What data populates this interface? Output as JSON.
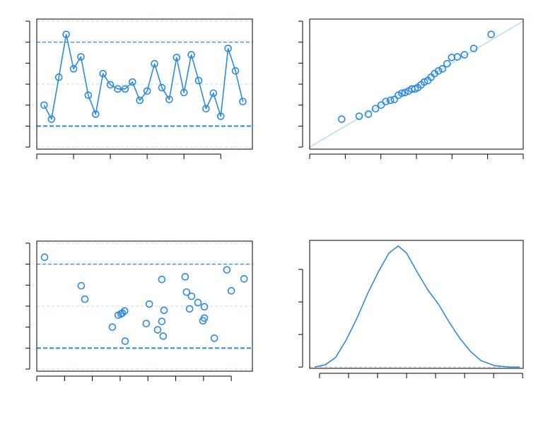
{
  "chart_data": [
    {
      "type": "line",
      "markers": true,
      "color": "#2a8ae2",
      "x": [
        1,
        2,
        3,
        4,
        5,
        6,
        7,
        8,
        9,
        10,
        11,
        12,
        13,
        14,
        15,
        16,
        17,
        18,
        19,
        20,
        21,
        22,
        23,
        24,
        25,
        26,
        27,
        28
      ],
      "values": [
        -1.0,
        -1.67,
        0.33,
        2.37,
        0.73,
        1.3,
        -0.53,
        -1.43,
        0.5,
        -0.03,
        -0.23,
        -0.23,
        0.1,
        -0.77,
        -0.33,
        0.97,
        -0.17,
        -0.73,
        1.27,
        -0.4,
        1.4,
        0.17,
        -1.17,
        -0.43,
        -1.53,
        1.7,
        0.63,
        -0.83
      ],
      "xlim": [
        0,
        29.3
      ],
      "xticks": [
        0,
        5,
        10,
        15,
        20,
        25
      ],
      "ylim": [
        -3.1,
        3.1
      ],
      "yticks": [
        -3,
        -2,
        -1,
        0,
        1,
        2,
        3
      ],
      "hlines": [
        {
          "value": 3,
          "style": "light",
          "color": "#b8def2"
        },
        {
          "value": 2,
          "style": "dashed",
          "color": "#2a8ae2"
        },
        {
          "value": 0,
          "style": "light",
          "color": "#b8def2"
        },
        {
          "value": -2,
          "style": "bold",
          "color": "#2a8ae2"
        },
        {
          "value": -3,
          "style": "light",
          "color": "#b8def2"
        }
      ]
    },
    {
      "type": "scatter",
      "color": "#2a8ae2",
      "x": [
        -2.1,
        -1.61,
        -1.35,
        -1.15,
        -0.99,
        -0.86,
        -0.73,
        -0.62,
        -0.51,
        -0.41,
        -0.32,
        -0.22,
        -0.13,
        -0.04,
        0.04,
        0.13,
        0.22,
        0.32,
        0.41,
        0.51,
        0.62,
        0.73,
        0.86,
        0.99,
        1.15,
        1.35,
        1.61,
        2.1
      ],
      "values": [
        -1.67,
        -1.53,
        -1.43,
        -1.17,
        -1.0,
        -0.83,
        -0.77,
        -0.73,
        -0.53,
        -0.43,
        -0.4,
        -0.33,
        -0.23,
        -0.23,
        -0.17,
        -0.03,
        0.1,
        0.17,
        0.33,
        0.5,
        0.63,
        0.73,
        0.97,
        1.27,
        1.3,
        1.4,
        1.7,
        2.37
      ],
      "xlim": [
        -3,
        3
      ],
      "xticks": [
        -3,
        -2,
        -1,
        0,
        1,
        2,
        3
      ],
      "ylim": [
        -3.1,
        3.1
      ],
      "yticks": [
        -3,
        -2,
        -1,
        0,
        1,
        2,
        3
      ],
      "reference_line": {
        "slope": 1,
        "intercept": 0,
        "color": "#a9d9ee"
      }
    },
    {
      "type": "scatter",
      "color": "#2a8ae2",
      "x": [
        0.28,
        1.6,
        1.73,
        2.72,
        2.93,
        3.03,
        3.08,
        3.16,
        3.18,
        3.94,
        4.05,
        4.35,
        4.5,
        4.5,
        4.55,
        4.58,
        5.34,
        5.39,
        5.5,
        5.57,
        5.8,
        5.98,
        6.03,
        6.03,
        6.39,
        6.84,
        7.0,
        7.46
      ],
      "values": [
        2.33,
        0.97,
        0.33,
        -1.0,
        -0.43,
        -0.37,
        -0.33,
        -0.23,
        -1.67,
        -0.83,
        0.1,
        -1.13,
        -0.73,
        1.27,
        -1.43,
        -0.2,
        1.4,
        0.67,
        -0.13,
        0.47,
        0.17,
        -0.7,
        -0.57,
        -0.03,
        -1.53,
        1.73,
        0.73,
        1.3
      ],
      "xlim": [
        0,
        7.76
      ],
      "xticks": [
        0,
        1,
        2,
        3,
        4,
        5,
        6,
        7
      ],
      "ylim": [
        -3.1,
        3.1
      ],
      "yticks": [
        -3,
        -2,
        -1,
        0,
        1,
        2,
        3
      ],
      "hlines": [
        {
          "value": 3,
          "style": "light",
          "color": "#b8def2"
        },
        {
          "value": 2,
          "style": "dashed",
          "color": "#2a8ae2"
        },
        {
          "value": 0,
          "style": "light",
          "color": "#b8def2"
        },
        {
          "value": -2,
          "style": "bold",
          "color": "#2a8ae2"
        },
        {
          "value": -3,
          "style": "light",
          "color": "#b8def2"
        }
      ]
    },
    {
      "type": "line",
      "markers": false,
      "color": "#2a8ae2",
      "x": [
        -3.17,
        -2.8,
        -2.44,
        -2.07,
        -1.71,
        -1.34,
        -0.98,
        -0.61,
        -0.29,
        0,
        0.37,
        0.73,
        1.1,
        1.46,
        1.83,
        2.2,
        2.56,
        3.05,
        3.54,
        3.9
      ],
      "values": [
        0,
        0.007,
        0.03,
        0.085,
        0.15,
        0.226,
        0.291,
        0.35,
        0.372,
        0.35,
        0.291,
        0.237,
        0.193,
        0.139,
        0.089,
        0.048,
        0.02,
        0.004,
        0,
        0
      ],
      "xlim": [
        -3.34,
        4.02
      ],
      "xticks": [
        -3,
        -2,
        -1,
        0,
        1,
        2,
        3,
        4
      ],
      "ylim": [
        -0.004,
        0.389
      ],
      "yticks": [
        0,
        0.1,
        0.2,
        0.3
      ],
      "hlines": [
        {
          "value": 0,
          "style": "light",
          "color": "#bbbbbb"
        }
      ]
    }
  ]
}
